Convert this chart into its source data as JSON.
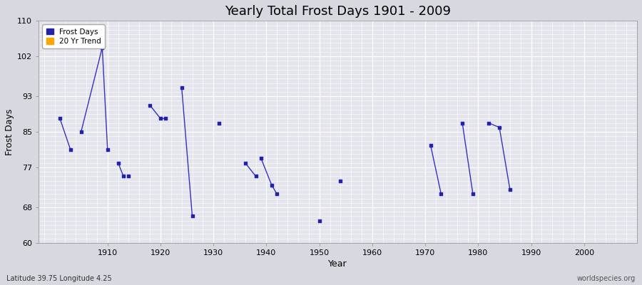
{
  "title": "Yearly Total Frost Days 1901 - 2009",
  "xlabel": "Year",
  "ylabel": "Frost Days",
  "lat_lon_label": "Latitude 39.75 Longitude 4.25",
  "watermark": "worldspecies.org",
  "xlim": [
    1897,
    2010
  ],
  "ylim": [
    60,
    110
  ],
  "yticks": [
    60,
    68,
    77,
    85,
    93,
    102,
    110
  ],
  "xticks": [
    1910,
    1920,
    1930,
    1940,
    1950,
    1960,
    1970,
    1980,
    1990,
    2000
  ],
  "line_color": "#3333bb",
  "marker_color": "#2222aa",
  "trend_color": "#ffa500",
  "fig_bg_color": "#d8d8e0",
  "plot_bg_color": "#e4e4ec",
  "grid_color_major": "#ffffff",
  "grid_color_minor": "#ffffff",
  "segments": [
    {
      "x": [
        1901,
        1903
      ],
      "y": [
        88,
        81
      ]
    },
    {
      "x": [
        1905,
        1909,
        1910
      ],
      "y": [
        85,
        104,
        81
      ]
    },
    {
      "x": [
        1912,
        1913
      ],
      "y": [
        78,
        75
      ]
    },
    {
      "x": [
        1918,
        1920,
        1921
      ],
      "y": [
        91,
        88,
        88
      ]
    },
    {
      "x": [
        1924,
        1926
      ],
      "y": [
        95,
        66
      ]
    },
    {
      "x": [
        1936,
        1938
      ],
      "y": [
        78,
        75
      ]
    },
    {
      "x": [
        1939,
        1941,
        1942
      ],
      "y": [
        79,
        73,
        71
      ]
    },
    {
      "x": [
        1971,
        1973
      ],
      "y": [
        82,
        71
      ]
    },
    {
      "x": [
        1977,
        1979
      ],
      "y": [
        87,
        71
      ]
    },
    {
      "x": [
        1982,
        1984,
        1986
      ],
      "y": [
        87,
        86,
        72
      ]
    }
  ],
  "isolated_points": [
    [
      1914,
      75
    ],
    [
      1931,
      87
    ],
    [
      1950,
      65
    ],
    [
      1954,
      74
    ]
  ]
}
